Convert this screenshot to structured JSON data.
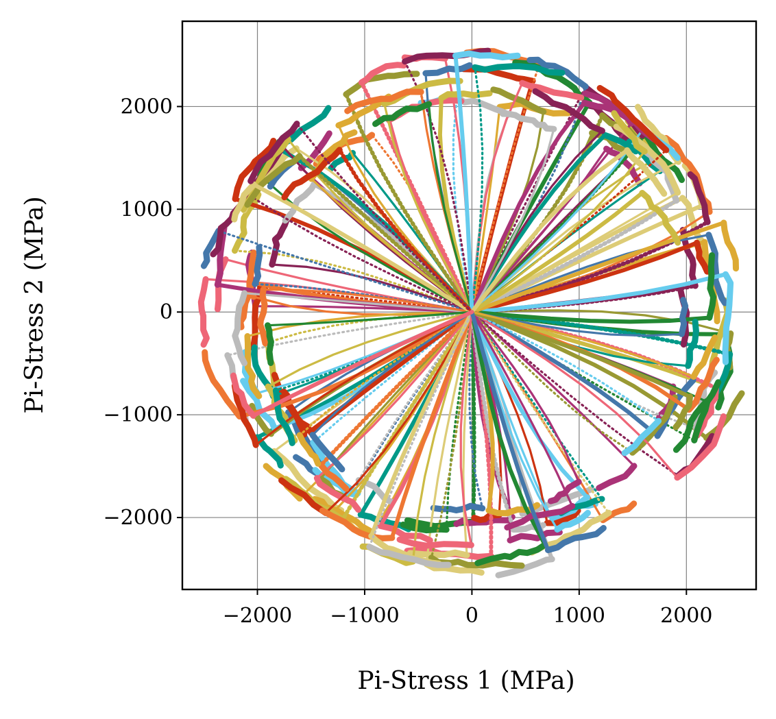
{
  "chart_data": {
    "type": "line",
    "title": "",
    "xlabel": "Pi-Stress 1 (MPa)",
    "ylabel": "Pi-Stress 2 (MPa)",
    "xlim": [
      -2700,
      2650
    ],
    "ylim": [
      -2700,
      2830
    ],
    "xticks": [
      -2000,
      -1000,
      0,
      1000,
      2000
    ],
    "yticks": [
      -2000,
      -1000,
      0,
      1000,
      2000
    ],
    "xtick_labels": [
      "−2000",
      "−1000",
      "0",
      "1000",
      "2000"
    ],
    "ytick_labels": [
      "−2000",
      "−1000",
      "0",
      "1000",
      "2000"
    ],
    "grid": true,
    "legend": "none",
    "description_of_series": "Hundreds of stress-path trajectories in the pi-plane, each starting at the origin (0,0) and extending radially outward to a failure envelope of radius roughly 2200-2500 MPa, with curling tails near the envelope.",
    "series_count": 170,
    "envelope_radius_range": [
      1900,
      2520
    ],
    "origin": [
      0,
      0
    ],
    "palette": [
      "#4477AA",
      "#EE6677",
      "#228833",
      "#CCBB44",
      "#66CCEE",
      "#AA3377",
      "#BBBBBB",
      "#CC3311",
      "#009988",
      "#EE7733",
      "#882255",
      "#999933",
      "#DDCC77",
      "#DDAA33"
    ]
  }
}
